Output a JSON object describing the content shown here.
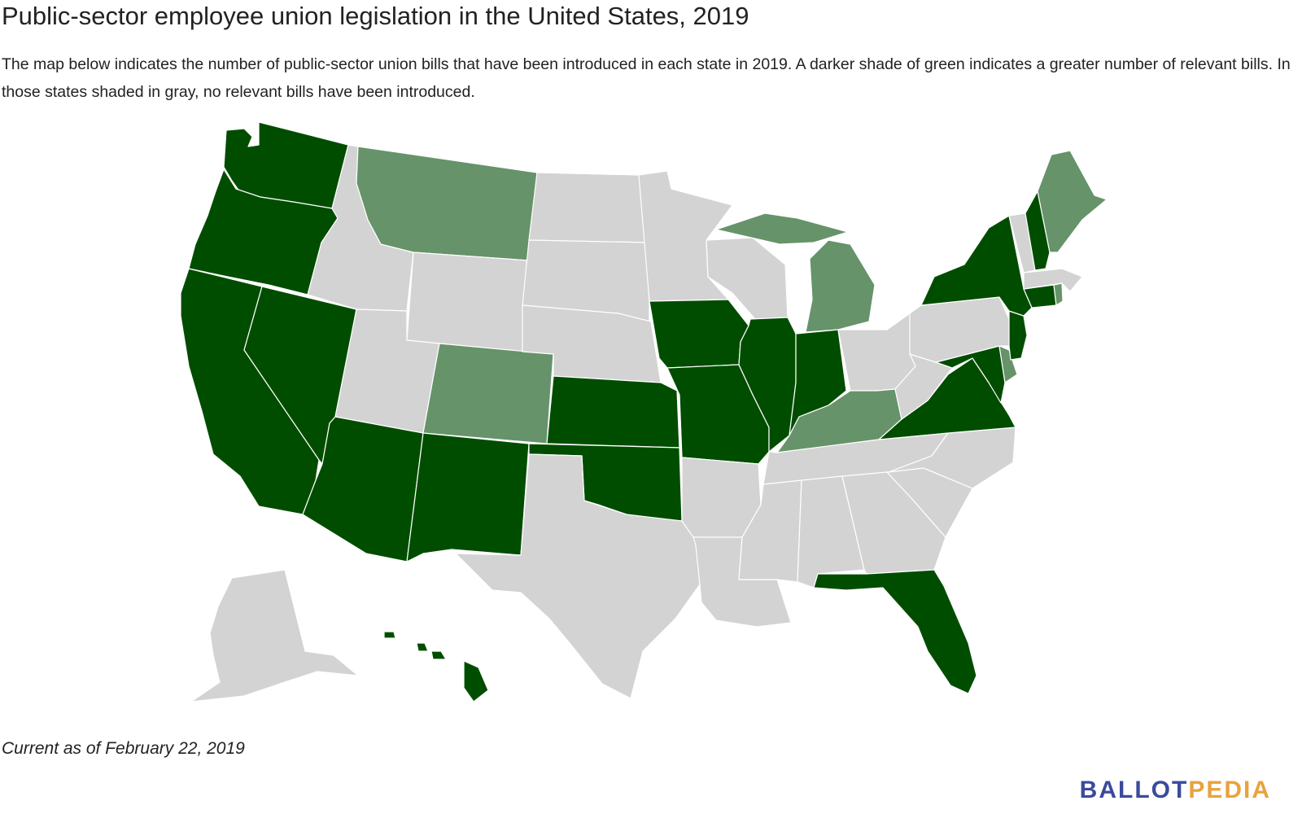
{
  "title": "Public-sector employee union legislation in the United States, 2019",
  "description": "The map below indicates the number of public-sector union bills that have been introduced in each state in 2019. A darker shade of green indicates a greater number of relevant bills. In those states shaded in gray, no relevant bills have been introduced.",
  "footnote": "Current as of February 22, 2019",
  "logo": {
    "part1": "BALLOT",
    "part2": "PEDIA",
    "color1": "#3a4b9b",
    "color2": "#e8a33d"
  },
  "colors": {
    "dark_green": "#004d00",
    "light_green": "#66936a",
    "gray": "#d3d3d3",
    "border": "#ffffff"
  },
  "map": {
    "legend_meaning": {
      "dark": "greater number of relevant bills",
      "light": "fewer relevant bills",
      "none": "no relevant bills introduced"
    },
    "states": [
      {
        "id": "WA",
        "name": "Washington",
        "shade": "dark"
      },
      {
        "id": "OR",
        "name": "Oregon",
        "shade": "dark"
      },
      {
        "id": "CA",
        "name": "California",
        "shade": "dark"
      },
      {
        "id": "NV",
        "name": "Nevada",
        "shade": "dark"
      },
      {
        "id": "ID",
        "name": "Idaho",
        "shade": "none"
      },
      {
        "id": "MT",
        "name": "Montana",
        "shade": "light"
      },
      {
        "id": "WY",
        "name": "Wyoming",
        "shade": "none"
      },
      {
        "id": "UT",
        "name": "Utah",
        "shade": "none"
      },
      {
        "id": "AZ",
        "name": "Arizona",
        "shade": "dark"
      },
      {
        "id": "CO",
        "name": "Colorado",
        "shade": "light"
      },
      {
        "id": "NM",
        "name": "New Mexico",
        "shade": "dark"
      },
      {
        "id": "ND",
        "name": "North Dakota",
        "shade": "none"
      },
      {
        "id": "SD",
        "name": "South Dakota",
        "shade": "none"
      },
      {
        "id": "NE",
        "name": "Nebraska",
        "shade": "none"
      },
      {
        "id": "KS",
        "name": "Kansas",
        "shade": "dark"
      },
      {
        "id": "OK",
        "name": "Oklahoma",
        "shade": "dark"
      },
      {
        "id": "TX",
        "name": "Texas",
        "shade": "none"
      },
      {
        "id": "MN",
        "name": "Minnesota",
        "shade": "none"
      },
      {
        "id": "IA",
        "name": "Iowa",
        "shade": "dark"
      },
      {
        "id": "MO",
        "name": "Missouri",
        "shade": "dark"
      },
      {
        "id": "AR",
        "name": "Arkansas",
        "shade": "none"
      },
      {
        "id": "LA",
        "name": "Louisiana",
        "shade": "none"
      },
      {
        "id": "WI",
        "name": "Wisconsin",
        "shade": "none"
      },
      {
        "id": "IL",
        "name": "Illinois",
        "shade": "dark"
      },
      {
        "id": "MI",
        "name": "Michigan",
        "shade": "light"
      },
      {
        "id": "IN",
        "name": "Indiana",
        "shade": "dark"
      },
      {
        "id": "OH",
        "name": "Ohio",
        "shade": "none"
      },
      {
        "id": "KY",
        "name": "Kentucky",
        "shade": "light"
      },
      {
        "id": "TN",
        "name": "Tennessee",
        "shade": "none"
      },
      {
        "id": "MS",
        "name": "Mississippi",
        "shade": "none"
      },
      {
        "id": "AL",
        "name": "Alabama",
        "shade": "none"
      },
      {
        "id": "GA",
        "name": "Georgia",
        "shade": "none"
      },
      {
        "id": "FL",
        "name": "Florida",
        "shade": "dark"
      },
      {
        "id": "SC",
        "name": "South Carolina",
        "shade": "none"
      },
      {
        "id": "NC",
        "name": "North Carolina",
        "shade": "none"
      },
      {
        "id": "VA",
        "name": "Virginia",
        "shade": "dark"
      },
      {
        "id": "WV",
        "name": "West Virginia",
        "shade": "none"
      },
      {
        "id": "MD",
        "name": "Maryland",
        "shade": "dark"
      },
      {
        "id": "DE",
        "name": "Delaware",
        "shade": "light"
      },
      {
        "id": "PA",
        "name": "Pennsylvania",
        "shade": "none"
      },
      {
        "id": "NJ",
        "name": "New Jersey",
        "shade": "dark"
      },
      {
        "id": "NY",
        "name": "New York",
        "shade": "dark"
      },
      {
        "id": "CT",
        "name": "Connecticut",
        "shade": "dark"
      },
      {
        "id": "RI",
        "name": "Rhode Island",
        "shade": "light"
      },
      {
        "id": "MA",
        "name": "Massachusetts",
        "shade": "none"
      },
      {
        "id": "VT",
        "name": "Vermont",
        "shade": "none"
      },
      {
        "id": "NH",
        "name": "New Hampshire",
        "shade": "dark"
      },
      {
        "id": "ME",
        "name": "Maine",
        "shade": "light"
      },
      {
        "id": "AK",
        "name": "Alaska",
        "shade": "none"
      },
      {
        "id": "HI",
        "name": "Hawaii",
        "shade": "dark"
      }
    ]
  }
}
